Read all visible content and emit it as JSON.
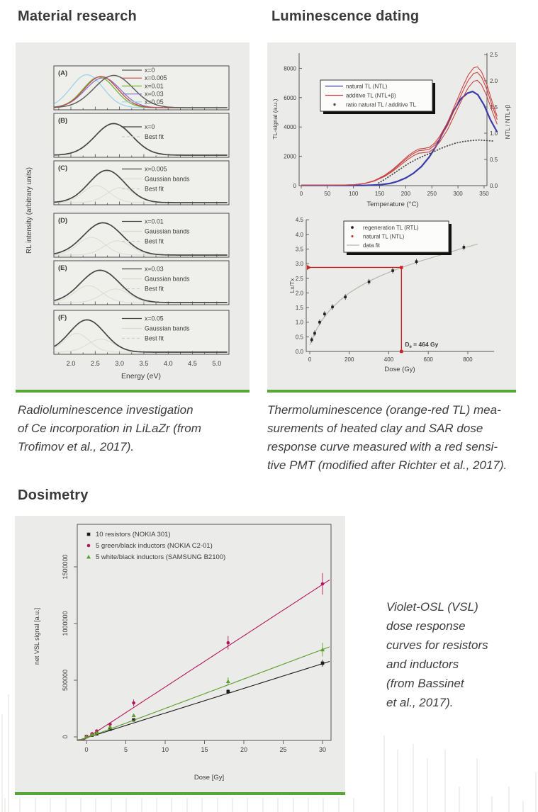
{
  "theme": {
    "accent_green": "#58a539",
    "figure_bg": "#ebebe9",
    "heading_color": "#3a3a3a",
    "caption_color": "#3d3d3d"
  },
  "headings": {
    "material": "Material research",
    "luminescence": "Luminescence dating",
    "dosimetry": "Dosimetry"
  },
  "captions": {
    "material_lines": [
      "Radioluminescence investigation",
      "of Ce incorporation in LiLaZr (from",
      "Trofimov et al., 2017)."
    ],
    "luminescence_lines": [
      "Thermoluminescence (orange-red TL) mea-",
      "surements of heated clay and SAR dose",
      "response curve measured with a red sensi-",
      "tive PMT (modified after Richter et al., 2017)."
    ],
    "dosimetry_lines": [
      "Violet-OSL (VSL)",
      "dose response",
      "curves for resistors",
      "and inductors",
      "(from Bassinet",
      "et al., 2017)."
    ]
  },
  "chart_data": [
    {
      "id": "rl_spectra",
      "type": "line",
      "xlabel": "Energy (eV)",
      "ylabel": "RL intensity (arbitrary units)",
      "xticks": [
        2.0,
        2.5,
        3.0,
        3.5,
        4.0,
        4.5,
        5.0
      ],
      "xlim": [
        1.65,
        5.25
      ],
      "panels": [
        {
          "tag": "(A)",
          "legend": [
            {
              "label": "x=0",
              "color": "#5f5f5f",
              "style": "line"
            },
            {
              "label": "x=0.005",
              "color": "#c64747",
              "style": "line"
            },
            {
              "label": "x=0.01",
              "color": "#74b43a",
              "style": "line"
            },
            {
              "label": "x=0.03",
              "color": "#8279c6",
              "style": "line"
            },
            {
              "label": "x=0.05",
              "color": "#9fd2e4",
              "style": "line"
            }
          ],
          "curves": [
            {
              "peak": 2.33,
              "sigma": 0.33,
              "amp": 0.97,
              "color": "#9fd2e4",
              "width": 1.3
            },
            {
              "peak": 2.66,
              "sigma": 0.36,
              "amp": 0.88,
              "color": "#8279c6",
              "width": 1.3
            },
            {
              "peak": 2.58,
              "sigma": 0.33,
              "amp": 0.9,
              "color": "#74b43a",
              "width": 1.3
            },
            {
              "peak": 2.62,
              "sigma": 0.34,
              "amp": 0.92,
              "color": "#c64747",
              "width": 1.3
            },
            {
              "peak": 2.88,
              "sigma": 0.4,
              "amp": 0.95,
              "color": "#5f5f5f",
              "width": 1.5
            }
          ]
        },
        {
          "tag": "(B)",
          "legend": [
            {
              "label": "x=0",
              "color": "#454545",
              "style": "line"
            },
            {
              "label": "Best fit",
              "color": "#cfcfc7",
              "style": "dash"
            }
          ],
          "curves": [
            {
              "peak": 2.88,
              "sigma": 0.38,
              "amp": 0.93,
              "color": "#cfcfc7",
              "width": 1.1,
              "dash": "4,3"
            },
            {
              "peak": 2.88,
              "sigma": 0.38,
              "amp": 0.93,
              "color": "#454545",
              "width": 1.7
            }
          ]
        },
        {
          "tag": "(C)",
          "legend": [
            {
              "label": "x=0.005",
              "color": "#454545",
              "style": "line"
            },
            {
              "label": "Gaussian bands",
              "color": "#d9d9d1",
              "style": "line"
            },
            {
              "label": "Best fit",
              "color": "#cfcfc7",
              "style": "dash"
            }
          ],
          "curves": [
            {
              "peak": 2.52,
              "sigma": 0.27,
              "amp": 0.5,
              "color": "#dcdcd4",
              "width": 1
            },
            {
              "peak": 3.02,
              "sigma": 0.28,
              "amp": 0.44,
              "color": "#dcdcd4",
              "width": 1
            },
            {
              "peak": 2.74,
              "sigma": 0.37,
              "amp": 0.95,
              "color": "#cfcfc7",
              "width": 1.1,
              "dash": "4,3"
            },
            {
              "peak": 2.74,
              "sigma": 0.37,
              "amp": 0.95,
              "color": "#454545",
              "width": 1.7
            }
          ]
        },
        {
          "tag": "(D)",
          "legend": [
            {
              "label": "x=0.01",
              "color": "#454545",
              "style": "line"
            },
            {
              "label": "Gaussian bands",
              "color": "#d9d9d1",
              "style": "line"
            },
            {
              "label": "Best fit",
              "color": "#cfcfc7",
              "style": "dash"
            }
          ],
          "curves": [
            {
              "peak": 2.42,
              "sigma": 0.28,
              "amp": 0.52,
              "color": "#dcdcd4",
              "width": 1
            },
            {
              "peak": 2.96,
              "sigma": 0.28,
              "amp": 0.42,
              "color": "#dcdcd4",
              "width": 1
            },
            {
              "peak": 2.66,
              "sigma": 0.4,
              "amp": 0.95,
              "color": "#cfcfc7",
              "width": 1.1,
              "dash": "4,3"
            },
            {
              "peak": 2.66,
              "sigma": 0.4,
              "amp": 0.95,
              "color": "#454545",
              "width": 1.7
            }
          ]
        },
        {
          "tag": "(E)",
          "legend": [
            {
              "label": "x=0.03",
              "color": "#454545",
              "style": "line"
            },
            {
              "label": "Gaussian bands",
              "color": "#d9d9d1",
              "style": "line"
            },
            {
              "label": "Best fit",
              "color": "#cfcfc7",
              "style": "dash"
            }
          ],
          "curves": [
            {
              "peak": 2.36,
              "sigma": 0.28,
              "amp": 0.5,
              "color": "#dcdcd4",
              "width": 1
            },
            {
              "peak": 2.92,
              "sigma": 0.28,
              "amp": 0.4,
              "color": "#dcdcd4",
              "width": 1
            },
            {
              "peak": 2.6,
              "sigma": 0.4,
              "amp": 0.95,
              "color": "#cfcfc7",
              "width": 1.1,
              "dash": "4,3"
            },
            {
              "peak": 2.6,
              "sigma": 0.4,
              "amp": 0.95,
              "color": "#454545",
              "width": 1.7
            }
          ]
        },
        {
          "tag": "(F)",
          "legend": [
            {
              "label": "x=0.05",
              "color": "#454545",
              "style": "line"
            },
            {
              "label": "Gaussian bands",
              "color": "#d9d9d1",
              "style": "line"
            },
            {
              "label": "Best fit",
              "color": "#cfcfc7",
              "style": "dash"
            }
          ],
          "curves": [
            {
              "peak": 2.12,
              "sigma": 0.26,
              "amp": 0.55,
              "color": "#dcdcd4",
              "width": 1
            },
            {
              "peak": 2.62,
              "sigma": 0.28,
              "amp": 0.38,
              "color": "#dcdcd4",
              "width": 1
            },
            {
              "peak": 2.33,
              "sigma": 0.36,
              "amp": 0.95,
              "color": "#cfcfc7",
              "width": 1.1,
              "dash": "4,3"
            },
            {
              "peak": 2.33,
              "sigma": 0.36,
              "amp": 0.95,
              "color": "#454545",
              "width": 1.7
            }
          ]
        }
      ]
    },
    {
      "id": "tl_glow_curves",
      "type": "line",
      "xlabel": "Temperature (°C)",
      "ylabel_left": "TL-signal (a.u.)",
      "ylabel_right": "NTL / NTL+β",
      "xticks": [
        0,
        50,
        100,
        150,
        200,
        250,
        300,
        350
      ],
      "yticks_left": [
        0,
        2000,
        4000,
        6000,
        8000
      ],
      "yticks_right": [
        0.0,
        0.5,
        1.0,
        1.5,
        2.0,
        2.5
      ],
      "legend": [
        {
          "label": "natural TL (NTL)",
          "color": "#3b3bab",
          "style": "line"
        },
        {
          "label": "additive TL (NTL+β)",
          "color": "#c94444",
          "style": "line"
        },
        {
          "label": "ratio natural TL / additive TL",
          "color": "#4a4a4a",
          "style": "dot"
        }
      ],
      "series": [
        {
          "id": "natural",
          "name": "natural TL (NTL)",
          "color": "#3b3bab",
          "points": [
            [
              0,
              15
            ],
            [
              120,
              15
            ],
            [
              150,
              60
            ],
            [
              170,
              150
            ],
            [
              185,
              300
            ],
            [
              200,
              520
            ],
            [
              215,
              850
            ],
            [
              230,
              1300
            ],
            [
              245,
              1950
            ],
            [
              260,
              2800
            ],
            [
              275,
              3900
            ],
            [
              290,
              5000
            ],
            [
              305,
              5900
            ],
            [
              318,
              6300
            ],
            [
              328,
              6420
            ],
            [
              338,
              6200
            ],
            [
              350,
              5500
            ],
            [
              362,
              4500
            ],
            [
              375,
              3650
            ]
          ]
        },
        {
          "id": "additive",
          "name": "additive TL (NTL+β)",
          "color": "#c94444",
          "variants": [
            0.93,
            1.0,
            1.05
          ],
          "points": [
            [
              0,
              20
            ],
            [
              60,
              20
            ],
            [
              100,
              60
            ],
            [
              120,
              140
            ],
            [
              140,
              330
            ],
            [
              160,
              680
            ],
            [
              175,
              1050
            ],
            [
              190,
              1500
            ],
            [
              205,
              1950
            ],
            [
              215,
              2200
            ],
            [
              225,
              2380
            ],
            [
              235,
              2420
            ],
            [
              245,
              2480
            ],
            [
              255,
              2750
            ],
            [
              265,
              3200
            ],
            [
              280,
              4100
            ],
            [
              295,
              5300
            ],
            [
              310,
              6500
            ],
            [
              320,
              7200
            ],
            [
              330,
              7650
            ],
            [
              337,
              7720
            ],
            [
              345,
              7400
            ],
            [
              355,
              6600
            ],
            [
              365,
              5500
            ],
            [
              375,
              4500
            ]
          ]
        },
        {
          "id": "ratio",
          "name": "ratio natural TL / additive TL",
          "color": "#4a4a4a",
          "axis": "right",
          "points": [
            [
              148,
              0.05
            ],
            [
              160,
              0.12
            ],
            [
              175,
              0.22
            ],
            [
              190,
              0.32
            ],
            [
              205,
              0.42
            ],
            [
              220,
              0.5
            ],
            [
              235,
              0.57
            ],
            [
              250,
              0.63
            ],
            [
              265,
              0.7
            ],
            [
              280,
              0.76
            ],
            [
              295,
              0.81
            ],
            [
              310,
              0.84
            ],
            [
              325,
              0.86
            ],
            [
              340,
              0.87
            ],
            [
              355,
              0.86
            ],
            [
              370,
              0.85
            ]
          ]
        }
      ]
    },
    {
      "id": "sar_dose_response",
      "type": "scatter",
      "xlabel": "Dose (Gy)",
      "ylabel": "Lx/Tx",
      "xticks": [
        0,
        200,
        400,
        600,
        800
      ],
      "yticks": [
        0.0,
        0.5,
        1.0,
        1.5,
        2.0,
        2.5,
        3.0,
        3.5,
        4.0,
        4.5
      ],
      "legend": [
        {
          "label": "regeneration TL (RTL)",
          "color": "#1f1f1f",
          "style": "dot"
        },
        {
          "label": "natural TL (NTL)",
          "color": "#cc2222",
          "style": "dot"
        },
        {
          "label": "data fit",
          "color": "#b7b7b0",
          "style": "line"
        }
      ],
      "rtl_points": [
        [
          10,
          0.4
        ],
        [
          25,
          0.62
        ],
        [
          50,
          1.0
        ],
        [
          75,
          1.28
        ],
        [
          115,
          1.52
        ],
        [
          180,
          1.86
        ],
        [
          300,
          2.38
        ],
        [
          420,
          2.76
        ],
        [
          540,
          3.07
        ],
        [
          780,
          3.56
        ]
      ],
      "fit_points": [
        [
          0,
          0.22
        ],
        [
          30,
          0.7
        ],
        [
          60,
          1.05
        ],
        [
          100,
          1.4
        ],
        [
          150,
          1.73
        ],
        [
          200,
          2.0
        ],
        [
          250,
          2.21
        ],
        [
          300,
          2.4
        ],
        [
          350,
          2.56
        ],
        [
          400,
          2.7
        ],
        [
          450,
          2.83
        ],
        [
          500,
          2.95
        ],
        [
          560,
          3.09
        ],
        [
          620,
          3.21
        ],
        [
          700,
          3.37
        ],
        [
          780,
          3.54
        ],
        [
          850,
          3.67
        ]
      ],
      "natural_level": 2.87,
      "de_value_gy": 464,
      "de_label": {
        "base": "D",
        "sub": "e",
        "rest": " = 464 Gy"
      }
    },
    {
      "id": "vsl_dose_response",
      "type": "scatter",
      "xlabel": "Dose [Gy]",
      "ylabel": "net VSL signal [a.u.]",
      "xticks": [
        0,
        5,
        10,
        15,
        20,
        25,
        30
      ],
      "yticks": [
        {
          "label": "0",
          "value": 0
        },
        {
          "label": "500000",
          "value": 500000
        },
        {
          "label": "1000000",
          "value": 1000000
        },
        {
          "label": "1500000",
          "value": 1500000
        }
      ],
      "series": [
        {
          "name": "10 resistors (NOKIA 301)",
          "color": "#1c1c1c",
          "marker": "square",
          "slope": 21800,
          "intercept": -8000,
          "points": [
            [
              0,
              3000
            ],
            [
              0.7,
              15000
            ],
            [
              1.3,
              27000
            ],
            [
              3,
              68000
            ],
            [
              6,
              150000
            ],
            [
              18,
              400000
            ],
            [
              30,
              650000
            ]
          ],
          "errors": [
            [
              18,
              20000
            ],
            [
              30,
              30000
            ]
          ]
        },
        {
          "name": "5 green/black inductors (NOKIA C2-01)",
          "color": "#b3145a",
          "marker": "circle",
          "slope": 45200,
          "intercept": -12000,
          "points": [
            [
              0,
              5000
            ],
            [
              0.7,
              28000
            ],
            [
              1.3,
              52000
            ],
            [
              3,
              112000
            ],
            [
              6,
              300000
            ],
            [
              18,
              830000
            ],
            [
              30,
              1350000
            ]
          ],
          "errors": [
            [
              6,
              30000
            ],
            [
              18,
              60000
            ],
            [
              30,
              95000
            ]
          ]
        },
        {
          "name": "5 white/black inductors (SAMSUNG B2100)",
          "color": "#5f9e2c",
          "marker": "triangle",
          "slope": 26000,
          "intercept": -9000,
          "points": [
            [
              0,
              4000
            ],
            [
              0.7,
              20000
            ],
            [
              1.3,
              38000
            ],
            [
              3,
              90000
            ],
            [
              6,
              190000
            ],
            [
              18,
              490000
            ],
            [
              30,
              770000
            ]
          ],
          "errors": [
            [
              18,
              35000
            ],
            [
              30,
              60000
            ]
          ]
        }
      ]
    }
  ]
}
